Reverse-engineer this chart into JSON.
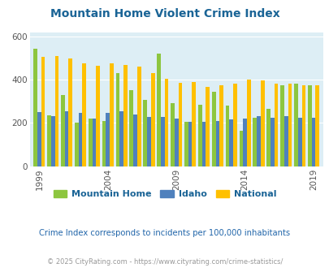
{
  "title": "Mountain Home Violent Crime Index",
  "subtitle": "Crime Index corresponds to incidents per 100,000 inhabitants",
  "footer": "© 2025 CityRating.com - https://www.cityrating.com/crime-statistics/",
  "years": [
    1999,
    2000,
    2001,
    2002,
    2003,
    2004,
    2005,
    2006,
    2007,
    2008,
    2009,
    2010,
    2011,
    2012,
    2013,
    2014,
    2015,
    2016,
    2017,
    2018,
    2019
  ],
  "mountain_home": [
    545,
    235,
    330,
    200,
    220,
    210,
    430,
    350,
    305,
    520,
    290,
    205,
    285,
    345,
    280,
    165,
    225,
    265,
    375,
    380,
    375
  ],
  "idaho": [
    250,
    230,
    255,
    245,
    220,
    245,
    255,
    238,
    228,
    228,
    220,
    205,
    205,
    210,
    215,
    220,
    230,
    225,
    230,
    225,
    225
  ],
  "national": [
    505,
    510,
    500,
    475,
    465,
    475,
    470,
    460,
    430,
    405,
    385,
    390,
    365,
    375,
    380,
    400,
    395,
    380,
    380,
    375,
    375
  ],
  "color_mh": "#8dc63f",
  "color_id": "#4f81bd",
  "color_nat": "#ffc000",
  "bg_color": "#ddeef5",
  "ylim": [
    0,
    620
  ],
  "yticks": [
    0,
    200,
    400,
    600
  ],
  "title_color": "#1a6496",
  "subtitle_color": "#2266aa",
  "footer_color": "#999999"
}
